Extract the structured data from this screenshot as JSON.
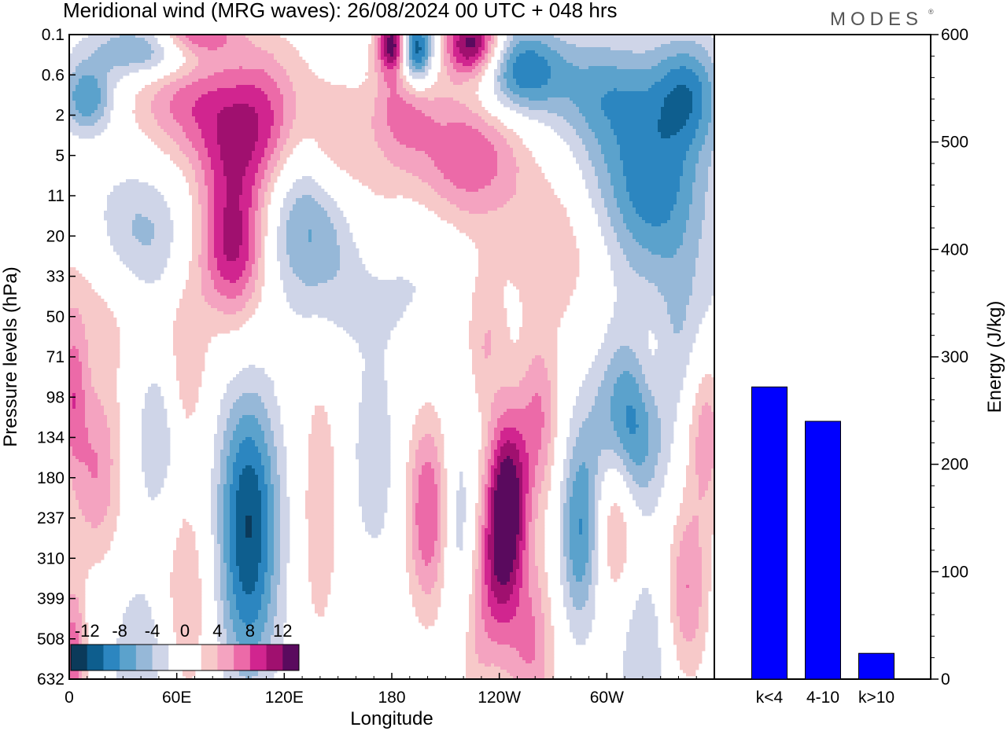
{
  "header": {
    "title": "Meridional wind (MRG waves):  26/08/2024  00 UTC  + 048 hrs",
    "logo": "MODES"
  },
  "colors": {
    "bar_fill": "#0000ff",
    "negative_scale": [
      "#0b3a5a",
      "#0e5e8e",
      "#2c86c0",
      "#5ba2cc",
      "#96b8d8",
      "#cfd5e8"
    ],
    "positive_scale": [
      "#f7c9c9",
      "#f4a3c0",
      "#ec6aa8",
      "#d1258f",
      "#a0106f",
      "#5a0a5e"
    ]
  },
  "chart_data": [
    {
      "type": "heatmap",
      "title": "Meridional wind (MRG waves):  26/08/2024  00 UTC  + 048 hrs",
      "xlabel": "Longitude",
      "ylabel": "Pressure levels (hPa)",
      "x_ticks": [
        "0",
        "60E",
        "120E",
        "180",
        "120W",
        "60W"
      ],
      "y_ticks": [
        "0.1",
        "0.6",
        "2",
        "5",
        "11",
        "20",
        "33",
        "50",
        "71",
        "98",
        "134",
        "180",
        "237",
        "310",
        "399",
        "508",
        "632"
      ],
      "colorbar": {
        "labels": [
          "-12",
          "-8",
          "-4",
          "0",
          "4",
          "8",
          "12"
        ],
        "levels": [
          -14,
          -12,
          -10,
          -8,
          -6,
          -4,
          -2,
          0,
          2,
          4,
          6,
          8,
          10,
          12,
          14
        ]
      },
      "features": [
        {
          "lon": 45,
          "plev": 0.2,
          "v": -8,
          "dlon": 22,
          "dlev": 0.5
        },
        {
          "lon": 10,
          "plev": 1.2,
          "v": -8,
          "dlon": 10,
          "dlev": 0.6
        },
        {
          "lon": 70,
          "plev": 0.1,
          "v": 8,
          "dlon": 16,
          "dlev": 0.4
        },
        {
          "lon": 95,
          "plev": 1.5,
          "v": 6,
          "dlon": 28,
          "dlev": 1.2
        },
        {
          "lon": 60,
          "plev": 1.2,
          "v": 4,
          "dlon": 20,
          "dlev": 1.0
        },
        {
          "lon": 181,
          "plev": 0.15,
          "v": 14,
          "dlon": 6,
          "dlev": 0.5
        },
        {
          "lon": 193,
          "plev": 0.2,
          "v": -14,
          "dlon": 7,
          "dlev": 0.6
        },
        {
          "lon": 225,
          "plev": 0.15,
          "v": 14,
          "dlon": 11,
          "dlev": 0.6
        },
        {
          "lon": 252,
          "plev": 0.5,
          "v": -10,
          "dlon": 18,
          "dlev": 0.8
        },
        {
          "lon": 300,
          "plev": 1.0,
          "v": -6,
          "dlon": 20,
          "dlev": 1.0
        },
        {
          "lon": 345,
          "plev": 1.0,
          "v": -8,
          "dlon": 14,
          "dlev": 1.0
        },
        {
          "lon": 185,
          "plev": 1.5,
          "v": 6,
          "dlon": 12,
          "dlev": 1.0
        },
        {
          "lon": 222,
          "plev": 5.0,
          "v": 8,
          "dlon": 22,
          "dlev": 1.2
        },
        {
          "lon": 90,
          "plev": 5.0,
          "v": 4,
          "dlon": 14,
          "dlev": 1.0
        },
        {
          "lon": 110,
          "plev": 4.0,
          "v": 4,
          "dlon": 12,
          "dlev": 1.4
        },
        {
          "lon": 150,
          "plev": 4.0,
          "v": 4,
          "dlon": 12,
          "dlev": 1.0
        },
        {
          "lon": 320,
          "plev": 7.0,
          "v": -6,
          "dlon": 24,
          "dlev": 1.4
        },
        {
          "lon": 330,
          "plev": 14.0,
          "v": -4,
          "dlon": 20,
          "dlev": 1.6
        },
        {
          "lon": 92,
          "plev": 22.0,
          "v": 12,
          "dlon": 14,
          "dlev": 1.3
        },
        {
          "lon": 38,
          "plev": 22.0,
          "v": -6,
          "dlon": 20,
          "dlev": 1.3
        },
        {
          "lon": 125,
          "plev": 16.0,
          "v": -6,
          "dlon": 22,
          "dlev": 1.4
        },
        {
          "lon": 170,
          "plev": 17.0,
          "v": 4,
          "dlon": 14,
          "dlev": 1.3
        },
        {
          "lon": 270,
          "plev": 23.0,
          "v": 4,
          "dlon": 18,
          "dlev": 1.3
        },
        {
          "lon": 20,
          "plev": 40.0,
          "v": 4,
          "dlon": 26,
          "dlev": 1.4
        },
        {
          "lon": 170,
          "plev": 30.0,
          "v": -4,
          "dlon": 25,
          "dlev": 1.5
        },
        {
          "lon": 340,
          "plev": 60.0,
          "v": -4,
          "dlon": 20,
          "dlev": 1.5
        },
        {
          "lon": 232,
          "plev": 60.0,
          "v": 4,
          "dlon": 8,
          "dlev": 1.3
        },
        {
          "lon": 65,
          "plev": 75.0,
          "v": 4,
          "dlon": 8,
          "dlev": 1.5
        },
        {
          "lon": 325,
          "plev": 75.0,
          "v": 4,
          "dlon": 8,
          "dlev": 1.3
        },
        {
          "lon": 312,
          "plev": 125.0,
          "v": -10,
          "dlon": 14,
          "dlev": 1.4
        },
        {
          "lon": 262,
          "plev": 115.0,
          "v": 6,
          "dlon": 8,
          "dlev": 1.5
        },
        {
          "lon": 355,
          "plev": 120.0,
          "v": 6,
          "dlon": 8,
          "dlev": 1.6
        },
        {
          "lon": 15,
          "plev": 170.0,
          "v": 6,
          "dlon": 10,
          "dlev": 1.6
        },
        {
          "lon": 2,
          "plev": 98.0,
          "v": 6,
          "dlon": 5,
          "dlev": 1.3
        },
        {
          "lon": 50,
          "plev": 130.0,
          "v": -4,
          "dlon": 10,
          "dlev": 1.6
        },
        {
          "lon": 100,
          "plev": 200.0,
          "v": -10,
          "dlon": 12,
          "dlev": 1.9
        },
        {
          "lon": 100,
          "plev": 420.0,
          "v": -6,
          "dlon": 12,
          "dlev": 1.7
        },
        {
          "lon": 140,
          "plev": 220.0,
          "v": 4,
          "dlon": 7,
          "dlev": 2.3
        },
        {
          "lon": 170,
          "plev": 160.0,
          "v": -4,
          "dlon": 8,
          "dlev": 1.6
        },
        {
          "lon": 200,
          "plev": 230.0,
          "v": 8,
          "dlon": 8,
          "dlev": 1.7
        },
        {
          "lon": 245,
          "plev": 200.0,
          "v": 12,
          "dlon": 8,
          "dlev": 1.5
        },
        {
          "lon": 240,
          "plev": 330.0,
          "v": 8,
          "dlon": 8,
          "dlev": 1.6
        },
        {
          "lon": 218,
          "plev": 300.0,
          "v": -4,
          "dlon": 6,
          "dlev": 2.2
        },
        {
          "lon": 285,
          "plev": 260.0,
          "v": -8,
          "dlon": 8,
          "dlev": 1.7
        },
        {
          "lon": 305,
          "plev": 220.0,
          "v": 6,
          "dlon": 8,
          "dlev": 1.6
        },
        {
          "lon": 345,
          "plev": 380.0,
          "v": 6,
          "dlon": 8,
          "dlev": 1.5
        },
        {
          "lon": 65,
          "plev": 400.0,
          "v": 4,
          "dlon": 10,
          "dlev": 2.0
        },
        {
          "lon": 258,
          "plev": 530.0,
          "v": 6,
          "dlon": 9,
          "dlev": 1.6
        },
        {
          "lon": 225,
          "plev": 500.0,
          "v": 4,
          "dlon": 8,
          "dlev": 1.7
        },
        {
          "lon": 40,
          "plev": 580.0,
          "v": -4,
          "dlon": 12,
          "dlev": 1.5
        },
        {
          "lon": 2,
          "plev": 600.0,
          "v": 8,
          "dlon": 5,
          "dlev": 1.5
        },
        {
          "lon": 320,
          "plev": 560.0,
          "v": -4,
          "dlon": 10,
          "dlev": 1.6
        }
      ]
    },
    {
      "type": "bar",
      "categories": [
        "k<4",
        "4-10",
        "k>10"
      ],
      "values": [
        272,
        240,
        24
      ],
      "ylabel": "Energy (J/kg)",
      "ylim": [
        0,
        600
      ],
      "y_ticks": [
        0,
        100,
        200,
        300,
        400,
        500,
        600
      ]
    }
  ]
}
